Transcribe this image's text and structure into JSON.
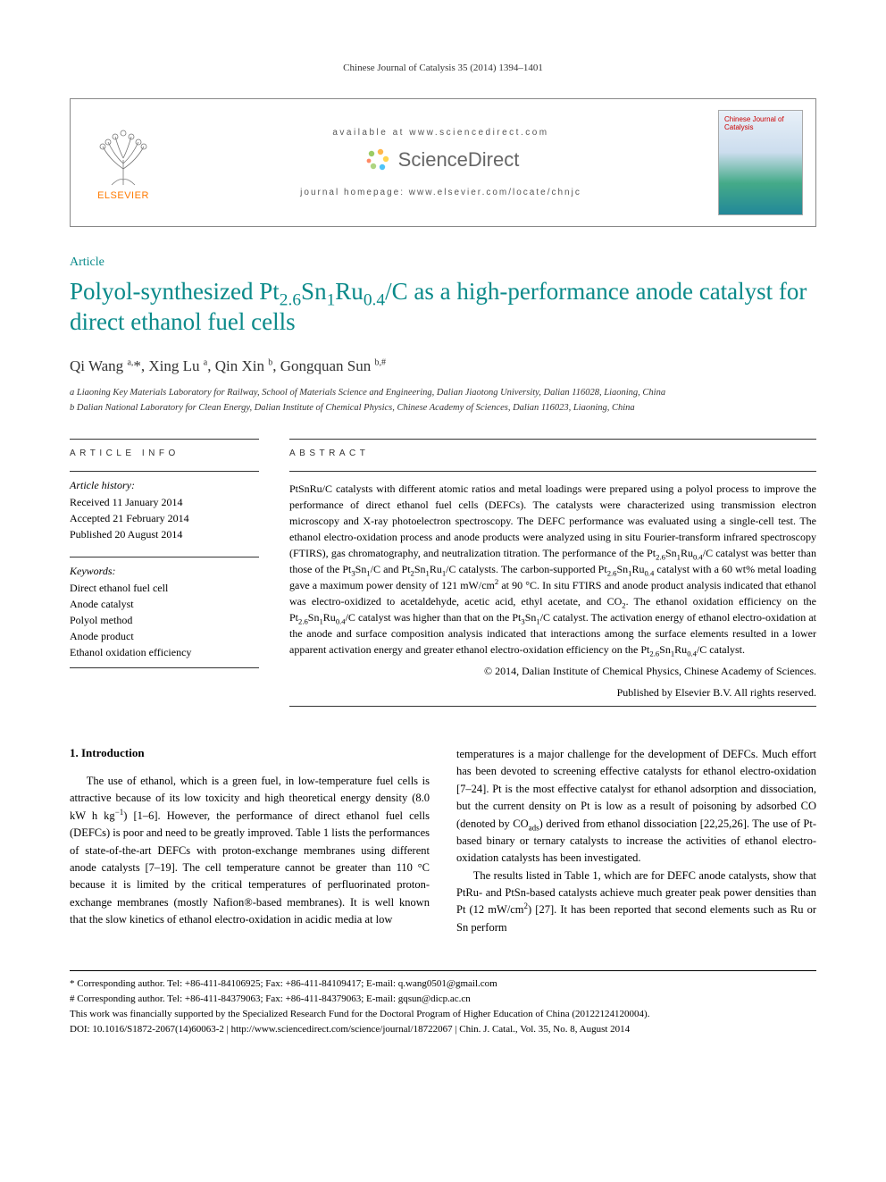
{
  "running_head": "Chinese Journal of Catalysis 35 (2014) 1394–1401",
  "header": {
    "available": "available at www.sciencedirect.com",
    "sciencedirect": "ScienceDirect",
    "homepage": "journal homepage: www.elsevier.com/locate/chnjc",
    "elsevier": "ELSEVIER",
    "cover_title": "Chinese Journal of Catalysis"
  },
  "article_type": "Article",
  "title_html": "Polyol-synthesized Pt<sub>2.6</sub>Sn<sub>1</sub>Ru<sub>0.4</sub>/C as a high-performance anode catalyst for direct ethanol fuel cells",
  "authors_html": "Qi Wang <sup>a,</sup>*, Xing Lu <sup>a</sup>, Qin Xin <sup>b</sup>, Gongquan Sun <sup>b,#</sup>",
  "affiliations": [
    "a Liaoning Key Materials Laboratory for Railway, School of Materials Science and Engineering, Dalian Jiaotong University, Dalian 116028, Liaoning, China",
    "b Dalian National Laboratory for Clean Energy, Dalian Institute of Chemical Physics, Chinese Academy of Sciences, Dalian 116023, Liaoning, China"
  ],
  "info": {
    "head": "ARTICLE INFO",
    "history_label": "Article history:",
    "history": [
      "Received 11 January 2014",
      "Accepted 21 February 2014",
      "Published 20 August 2014"
    ],
    "keywords_label": "Keywords:",
    "keywords": [
      "Direct ethanol fuel cell",
      "Anode catalyst",
      "Polyol method",
      "Anode product",
      "Ethanol oxidation efficiency"
    ]
  },
  "abstract": {
    "head": "ABSTRACT",
    "text_html": "PtSnRu/C catalysts with different atomic ratios and metal loadings were prepared using a polyol process to improve the performance of direct ethanol fuel cells (DEFCs). The catalysts were characterized using transmission electron microscopy and X-ray photoelectron spectroscopy. The DEFC performance was evaluated using a single-cell test. The ethanol electro-oxidation process and anode products were analyzed using in situ Fourier-transform infrared spectroscopy (FTIRS), gas chromatography, and neutralization titration. The performance of the Pt<sub>2.6</sub>Sn<sub>1</sub>Ru<sub>0.4</sub>/C catalyst was better than those of the Pt<sub>3</sub>Sn<sub>1</sub>/C and Pt<sub>2</sub>Sn<sub>1</sub>Ru<sub>1</sub>/C catalysts. The carbon-supported Pt<sub>2.6</sub>Sn<sub>1</sub>Ru<sub>0.4</sub> catalyst with a 60 wt% metal loading gave a maximum power density of 121 mW/cm<sup>2</sup> at 90 °C. In situ FTIRS and anode product analysis indicated that ethanol was electro-oxidized to acetaldehyde, acetic acid, ethyl acetate, and CO<sub>2</sub>. The ethanol oxidation efficiency on the Pt<sub>2.6</sub>Sn<sub>1</sub>Ru<sub>0.4</sub>/C catalyst was higher than that on the Pt<sub>3</sub>Sn<sub>1</sub>/C catalyst. The activation energy of ethanol electro-oxidation at the anode and surface composition analysis indicated that interactions among the surface elements resulted in a lower apparent activation energy and greater ethanol electro-oxidation efficiency on the Pt<sub>2.6</sub>Sn<sub>1</sub>Ru<sub>0.4</sub>/C catalyst.",
    "copyright1": "© 2014, Dalian Institute of Chemical Physics, Chinese Academy of Sciences.",
    "copyright2": "Published by Elsevier B.V. All rights reserved."
  },
  "body": {
    "section_head": "1.   Introduction",
    "left_html": "The use of ethanol, which is a green fuel, in low-temperature fuel cells is attractive because of its low toxicity and high theoretical energy density (8.0 kW h kg<sup>−1</sup>) [1–6]. However, the performance of direct ethanol fuel cells (DEFCs) is poor and need to be greatly improved. Table 1 lists the performances of state-of-the-art DEFCs with proton-exchange membranes using different anode catalysts [7–19]. The cell temperature cannot be greater than 110 °C because it is limited by the critical temperatures of perfluorinated proton-exchange membranes (mostly Nafion®-based membranes). It is well known that the slow kinetics of ethanol electro-oxidation in acidic media at low",
    "right_p1_html": "temperatures is a major challenge for the development of DEFCs. Much effort has been devoted to screening effective catalysts for ethanol electro-oxidation [7–24]. Pt is the most effective catalyst for ethanol adsorption and dissociation, but the current density on Pt is low as a result of poisoning by adsorbed CO (denoted by CO<sub>ads</sub>) derived from ethanol dissociation [22,25,26]. The use of Pt-based binary or ternary catalysts to increase the activities of ethanol electro-oxidation catalysts has been investigated.",
    "right_p2_html": "The results listed in Table 1, which are for DEFC anode catalysts, show that PtRu- and PtSn-based catalysts achieve much greater peak power densities than Pt (12 mW/cm<sup>2</sup>) [27]. It has been reported that second elements such as Ru or Sn perform"
  },
  "footnotes": [
    "* Corresponding author. Tel: +86-411-84106925; Fax: +86-411-84109417; E-mail: q.wang0501@gmail.com",
    "# Corresponding author. Tel: +86-411-84379063; Fax: +86-411-84379063; E-mail: gqsun@dicp.ac.cn",
    "This work was financially supported by the Specialized Research Fund for the Doctoral Program of Higher Education of China (20122124120004).",
    "DOI: 10.1016/S1872-2067(14)60063-2 | http://www.sciencedirect.com/science/journal/18722067 | Chin. J. Catal., Vol. 35, No. 8, August 2014"
  ],
  "colors": {
    "teal": "#0a8a8a",
    "orange": "#ff7a00",
    "sd_green": "#8bc34a",
    "sd_orange": "#ff9800",
    "sd_yellow": "#ffc107",
    "sd_blue": "#2196f3"
  }
}
